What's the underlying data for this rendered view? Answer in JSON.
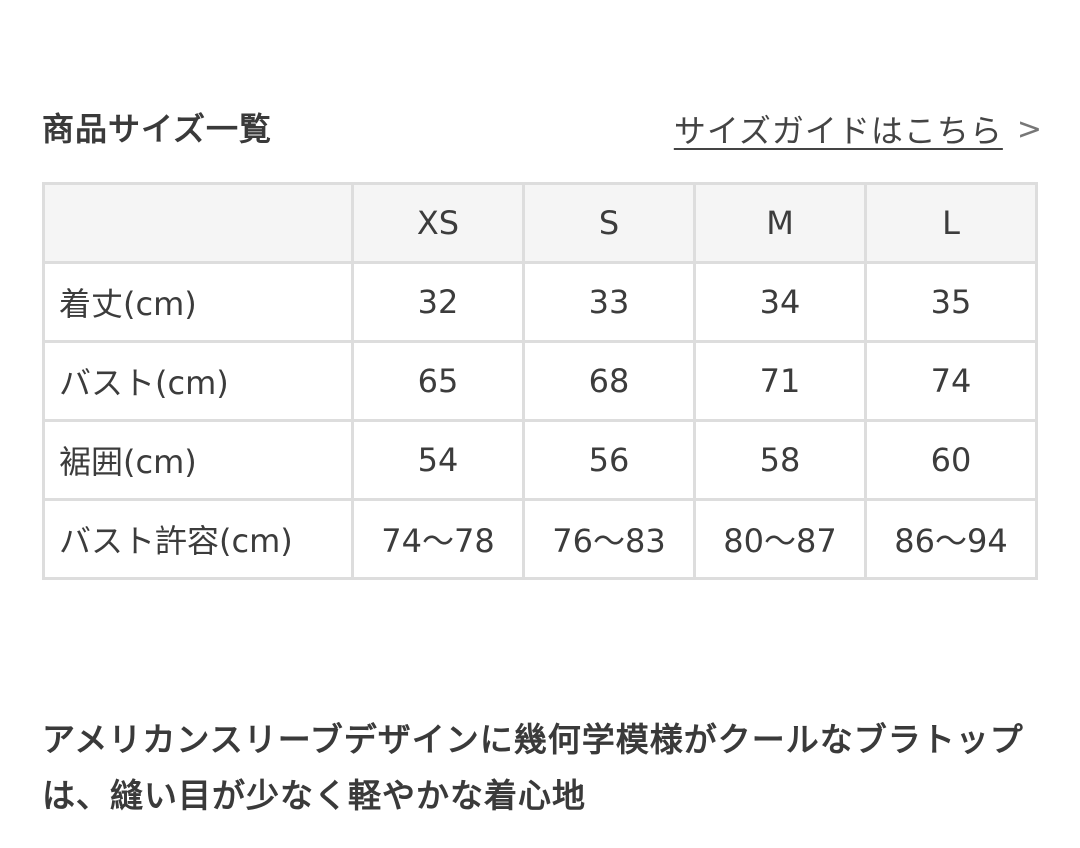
{
  "section_title": "商品サイズ一覧",
  "size_guide_link": "サイズガイドはこちら",
  "size_guide_chevron": ">",
  "table": {
    "headers": [
      "",
      "XS",
      "S",
      "M",
      "L"
    ],
    "rows": [
      {
        "label": "着丈(cm)",
        "values": [
          "32",
          "33",
          "34",
          "35"
        ]
      },
      {
        "label": "バスト(cm)",
        "values": [
          "65",
          "68",
          "71",
          "74"
        ]
      },
      {
        "label": "裾囲(cm)",
        "values": [
          "54",
          "56",
          "58",
          "60"
        ]
      },
      {
        "label": "バスト許容(cm)",
        "values": [
          "74〜78",
          "76〜83",
          "80〜87",
          "86〜94"
        ]
      }
    ]
  },
  "description": "アメリカンスリーブデザインに幾何学模様がクールなブラトップは、縫い目が少なく軽やかな着心地"
}
